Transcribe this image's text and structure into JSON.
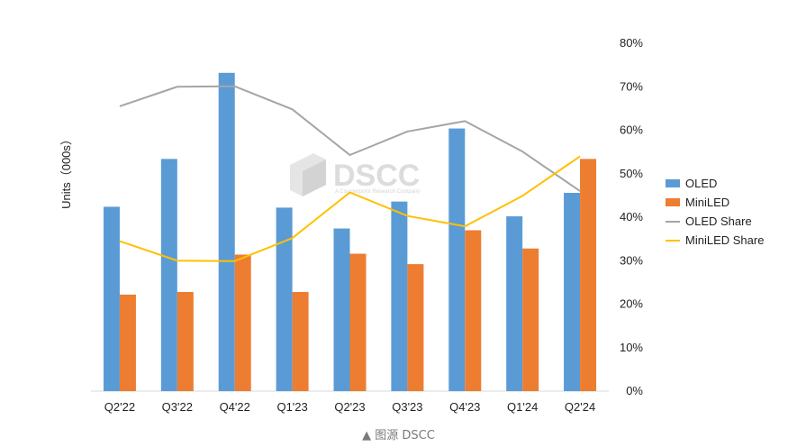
{
  "chart_data": {
    "type": "bar",
    "categories": [
      "Q2'22",
      "Q3'22",
      "Q4'22",
      "Q1'23",
      "Q2'23",
      "Q3'23",
      "Q4'23",
      "Q1'24",
      "Q2'24"
    ],
    "series": [
      {
        "name": "OLED",
        "kind": "bar",
        "axis": "left",
        "color": "#5b9bd5",
        "values": [
          212,
          267,
          366,
          211,
          187,
          218,
          302,
          201,
          228
        ]
      },
      {
        "name": "MiniLED",
        "kind": "bar",
        "axis": "left",
        "color": "#ed7d31",
        "values": [
          111,
          114,
          157,
          114,
          158,
          146,
          185,
          164,
          267
        ]
      },
      {
        "name": "OLED Share",
        "kind": "line",
        "axis": "right",
        "color": "#a5a5a5",
        "values": [
          65.5,
          70,
          70.1,
          64.8,
          54.3,
          59.7,
          62.1,
          55.1,
          46
        ]
      },
      {
        "name": "MiniLED Share",
        "kind": "line",
        "axis": "right",
        "color": "#ffc000",
        "values": [
          34.5,
          30,
          29.9,
          35.2,
          45.7,
          40.3,
          37.9,
          44.9,
          54
        ]
      }
    ],
    "ylabel": "Units（000s）",
    "y_left_lim": [
      0,
      400
    ],
    "y_right_lim": [
      0,
      80
    ],
    "y_right_ticks": [
      "0%",
      "10%",
      "20%",
      "30%",
      "40%",
      "50%",
      "60%",
      "70%",
      "80%"
    ],
    "grid": false,
    "legend_position": "right"
  },
  "watermark": {
    "brand": "DSCC",
    "tagline": "A Counterpoint Research Company",
    "color": "#d9d9d9"
  },
  "source": "▲ 图源 DSCC"
}
